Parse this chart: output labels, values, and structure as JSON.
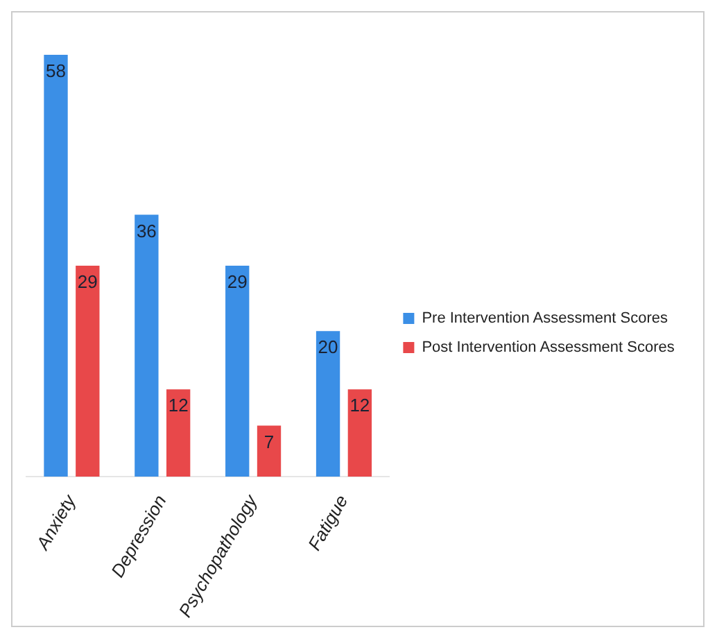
{
  "chart_data": {
    "type": "bar",
    "categories": [
      "Anxiety",
      "Depression",
      "Psychopathology",
      "Fatigue"
    ],
    "series": [
      {
        "name": "Pre Intervention Assessment Scores",
        "color": "#3b8fe6",
        "values": [
          58,
          36,
          29,
          20
        ]
      },
      {
        "name": "Post Intervention Assessment Scores",
        "color": "#e8484a",
        "values": [
          29,
          12,
          7,
          12
        ]
      }
    ],
    "data_labels": true,
    "legend": "right",
    "grid": false,
    "tick_labels": "x"
  }
}
